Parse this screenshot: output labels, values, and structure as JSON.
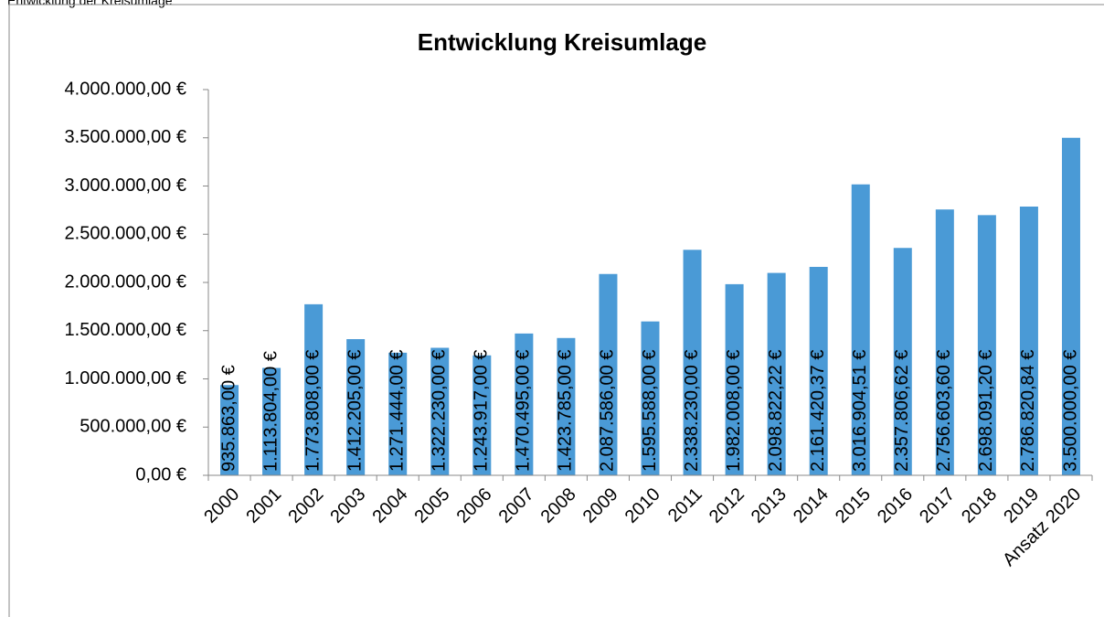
{
  "caption": "Entwicklung der Kreisumlage",
  "chart_data": {
    "type": "bar",
    "title": "Entwicklung Kreisumlage",
    "categories": [
      "2000",
      "2001",
      "2002",
      "2003",
      "2004",
      "2005",
      "2006",
      "2007",
      "2008",
      "2009",
      "2010",
      "2011",
      "2012",
      "2013",
      "2014",
      "2015",
      "2016",
      "2017",
      "2018",
      "2019",
      "Ansatz 2020"
    ],
    "values": [
      935863,
      1113804,
      1773808,
      1412205,
      1271444,
      1322230,
      1243917,
      1470495,
      1423785,
      2087586,
      1595588,
      2338230,
      1982008,
      2098822.22,
      2161420.37,
      3016904.51,
      2357806.62,
      2756603.6,
      2698091.2,
      2786820.84,
      3500000
    ],
    "value_labels": [
      "935.863,00 €",
      "1.113.804,00 €",
      "1.773.808,00 €",
      "1.412.205,00 €",
      "1.271.444,00 €",
      "1.322.230,00 €",
      "1.243.917,00 €",
      "1.470.495,00 €",
      "1.423.785,00 €",
      "2.087.586,00 €",
      "1.595.588,00 €",
      "2.338.230,00 €",
      "1.982.008,00 €",
      "2.098.822,22 €",
      "2.161.420,37 €",
      "3.016.904,51 €",
      "2.357.806,62 €",
      "2.756.603,60 €",
      "2.698.091,20 €",
      "2.786.820,84 €",
      "3.500.000,00 €"
    ],
    "color": "#4a9ad6",
    "ylim": [
      0,
      4000000
    ],
    "yticks": [
      {
        "value": 0,
        "label": "0,00 €"
      },
      {
        "value": 500000,
        "label": "500.000,00 €"
      },
      {
        "value": 1000000,
        "label": "1.000.000,00 €"
      },
      {
        "value": 1500000,
        "label": "1.500.000,00 €"
      },
      {
        "value": 2000000,
        "label": "2.000.000,00 €"
      },
      {
        "value": 2500000,
        "label": "2.500.000,00 €"
      },
      {
        "value": 3000000,
        "label": "3.000.000,00 €"
      },
      {
        "value": 3500000,
        "label": "3.500.000,00 €"
      },
      {
        "value": 4000000,
        "label": "4.000.000,00 €"
      }
    ],
    "grid": false
  }
}
